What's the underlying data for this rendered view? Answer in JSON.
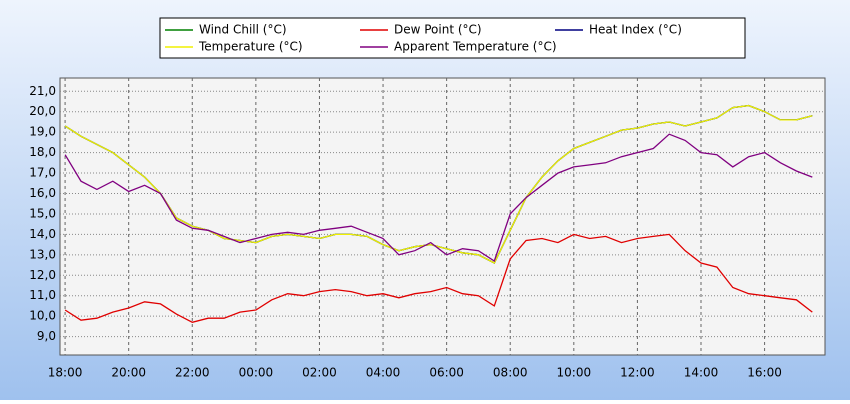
{
  "chart_data": {
    "type": "line",
    "x": [
      0,
      0.5,
      1,
      1.5,
      2,
      2.5,
      3,
      3.5,
      4,
      4.5,
      5,
      5.5,
      6,
      6.5,
      7,
      7.5,
      8,
      8.5,
      9,
      9.5,
      10,
      10.5,
      11,
      11.5,
      12,
      12.5,
      13,
      13.5,
      14,
      14.5,
      15,
      15.5,
      16,
      16.5,
      17,
      17.5,
      18,
      18.5,
      19,
      19.5,
      20,
      20.5,
      21,
      21.5,
      22,
      22.5,
      23,
      23.5
    ],
    "xlim": [
      -0.16,
      23.9
    ],
    "xticks": [
      {
        "value": 0,
        "label": "18:00"
      },
      {
        "value": 2,
        "label": "20:00"
      },
      {
        "value": 4,
        "label": "22:00"
      },
      {
        "value": 6,
        "label": "00:00"
      },
      {
        "value": 8,
        "label": "02:00"
      },
      {
        "value": 10,
        "label": "04:00"
      },
      {
        "value": 12,
        "label": "06:00"
      },
      {
        "value": 14,
        "label": "08:00"
      },
      {
        "value": 16,
        "label": "10:00"
      },
      {
        "value": 18,
        "label": "12:00"
      },
      {
        "value": 20,
        "label": "14:00"
      },
      {
        "value": 22,
        "label": "16:00"
      }
    ],
    "ylim": [
      8.1,
      21.65
    ],
    "yticks": [
      {
        "value": 9,
        "label": "9,0"
      },
      {
        "value": 10,
        "label": "10,0"
      },
      {
        "value": 11,
        "label": "11,0"
      },
      {
        "value": 12,
        "label": "12,0"
      },
      {
        "value": 13,
        "label": "13,0"
      },
      {
        "value": 14,
        "label": "14,0"
      },
      {
        "value": 15,
        "label": "15,0"
      },
      {
        "value": 16,
        "label": "16,0"
      },
      {
        "value": 17,
        "label": "17,0"
      },
      {
        "value": 18,
        "label": "18,0"
      },
      {
        "value": 19,
        "label": "19,0"
      },
      {
        "value": 20,
        "label": "20,0"
      },
      {
        "value": 21,
        "label": "21,0"
      }
    ],
    "grid": true,
    "series": [
      {
        "name": "Wind Chill (°C)",
        "color": "#008000",
        "values": [
          19.3,
          18.8,
          18.4,
          18.0,
          17.4,
          16.8,
          16.0,
          14.8,
          14.4,
          14.2,
          13.8,
          13.7,
          13.6,
          13.9,
          14.0,
          13.9,
          13.8,
          14.0,
          14.0,
          13.9,
          13.5,
          13.2,
          13.4,
          13.5,
          13.3,
          13.1,
          13.0,
          12.6,
          14.2,
          15.8,
          16.8,
          17.6,
          18.2,
          18.5,
          18.8,
          19.1,
          19.2,
          19.4,
          19.5,
          19.3,
          19.5,
          19.7,
          20.2,
          20.3,
          20.0,
          19.6,
          19.6,
          19.8
        ]
      },
      {
        "name": "Dew Point (°C)",
        "color": "#e00000",
        "values": [
          10.3,
          9.8,
          9.9,
          10.2,
          10.4,
          10.7,
          10.6,
          10.1,
          9.7,
          9.9,
          9.9,
          10.2,
          10.3,
          10.8,
          11.1,
          11.0,
          11.2,
          11.3,
          11.2,
          11.0,
          11.1,
          10.9,
          11.1,
          11.2,
          11.4,
          11.1,
          11.0,
          10.5,
          12.8,
          13.7,
          13.8,
          13.6,
          14.0,
          13.8,
          13.9,
          13.6,
          13.8,
          13.9,
          14.0,
          13.2,
          12.6,
          12.4,
          11.4,
          11.1,
          11.0,
          10.9,
          10.8,
          10.2
        ]
      },
      {
        "name": "Heat Index (°C)",
        "color": "#000080",
        "values": [
          19.3,
          18.8,
          18.4,
          18.0,
          17.4,
          16.8,
          16.0,
          14.8,
          14.4,
          14.2,
          13.8,
          13.7,
          13.6,
          13.9,
          14.0,
          13.9,
          13.8,
          14.0,
          14.0,
          13.9,
          13.5,
          13.2,
          13.4,
          13.5,
          13.3,
          13.1,
          13.0,
          12.6,
          14.2,
          15.8,
          16.8,
          17.6,
          18.2,
          18.5,
          18.8,
          19.1,
          19.2,
          19.4,
          19.5,
          19.3,
          19.5,
          19.7,
          20.2,
          20.3,
          20.0,
          19.6,
          19.6,
          19.8
        ]
      },
      {
        "name": "Temperature (°C)",
        "color": "#f0f000",
        "values": [
          19.3,
          18.8,
          18.4,
          18.0,
          17.4,
          16.8,
          16.0,
          14.8,
          14.4,
          14.2,
          13.8,
          13.7,
          13.6,
          13.9,
          14.0,
          13.9,
          13.8,
          14.0,
          14.0,
          13.9,
          13.5,
          13.2,
          13.4,
          13.5,
          13.3,
          13.1,
          13.0,
          12.6,
          14.2,
          15.8,
          16.8,
          17.6,
          18.2,
          18.5,
          18.8,
          19.1,
          19.2,
          19.4,
          19.5,
          19.3,
          19.5,
          19.7,
          20.2,
          20.3,
          20.0,
          19.6,
          19.6,
          19.8
        ]
      },
      {
        "name": "Apparent Temperature (°C)",
        "color": "#800080",
        "values": [
          17.9,
          16.6,
          16.2,
          16.6,
          16.1,
          16.4,
          16.0,
          14.7,
          14.3,
          14.2,
          13.9,
          13.6,
          13.8,
          14.0,
          14.1,
          14.0,
          14.2,
          14.3,
          14.4,
          14.1,
          13.8,
          13.0,
          13.2,
          13.6,
          13.0,
          13.3,
          13.2,
          12.7,
          15.0,
          15.8,
          16.4,
          17.0,
          17.3,
          17.4,
          17.5,
          17.8,
          18.0,
          18.2,
          18.9,
          18.6,
          18.0,
          17.9,
          17.3,
          17.8,
          18.0,
          17.5,
          17.1,
          16.8
        ]
      }
    ]
  }
}
